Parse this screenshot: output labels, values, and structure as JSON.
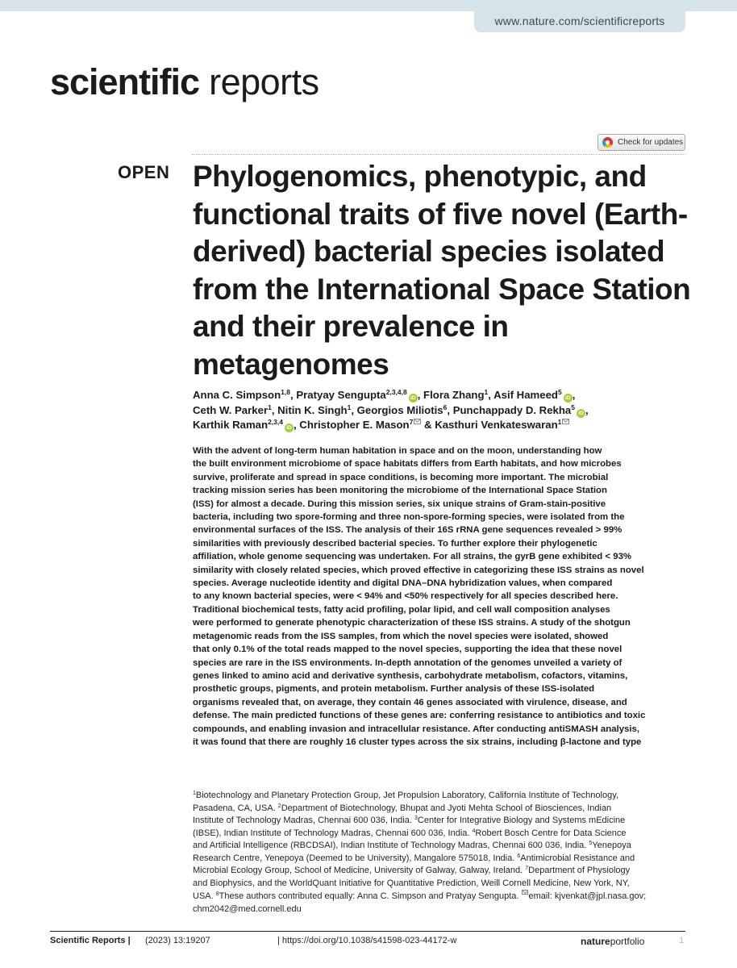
{
  "header": {
    "url": "www.nature.com/scientificreports",
    "brand_bold": "scientific",
    "brand_regular": " reports",
    "check_updates": "Check for updates"
  },
  "article": {
    "open_label": "OPEN",
    "title": "Phylogenomics, phenotypic, and functional traits of five novel (Earth-derived) bacterial species isolated from the International Space Station and their prevalence in metagenomes",
    "authors": [
      [
        "Anna C. Simpson",
        "1,8",
        "",
        ", Pratyay Sengupta",
        "2,3,4,8",
        "orcid",
        ", Flora Zhang",
        "1",
        "",
        ", Asif Hameed",
        "5",
        "orcid",
        ","
      ],
      [
        "Ceth W. Parker",
        "1",
        "",
        ", Nitin K. Singh",
        "1",
        "",
        ", Georgios Miliotis",
        "6",
        "",
        ", Punchappady D. Rekha",
        "5",
        "orcid",
        ","
      ],
      [
        "Karthik Raman",
        "2,3,4",
        "orcid",
        ", Christopher E. Mason",
        "7",
        "env",
        " & Kasthuri Venkateswaran",
        "1",
        "env",
        ""
      ]
    ],
    "abstract_lines": [
      "With the advent of long-term human habitation in space and on the moon, understanding how",
      "the built environment microbiome of space habitats differs from Earth habitats, and how microbes",
      "survive, proliferate and spread in space conditions, is becoming more important. The microbial",
      "tracking mission series has been monitoring the microbiome of the International Space Station",
      "(ISS) for almost a decade. During this mission series, six unique strains of Gram-stain-positive",
      "bacteria, including two spore-forming and three non-spore-forming species, were isolated from the",
      "environmental surfaces of the ISS. The analysis of their 16S rRNA gene sequences revealed > 99%",
      "similarities with previously described bacterial species. To further explore their phylogenetic",
      "affiliation, whole genome sequencing was undertaken. For all strains, the gyrB gene exhibited < 93%",
      "similarity with closely related species, which proved effective in categorizing these ISS strains as novel",
      "species. Average nucleotide identity and digital DNA–DNA hybridization values, when compared",
      "to any known bacterial species, were < 94% and <50% respectively for all species described here.",
      "Traditional biochemical tests, fatty acid profiling, polar lipid, and cell wall composition analyses",
      "were performed to generate phenotypic characterization of these ISS strains. A study of the shotgun",
      "metagenomic reads from the ISS samples, from which the novel species were isolated, showed",
      "that only 0.1% of the total reads mapped to the novel species, supporting the idea that these novel",
      "species are rare in the ISS environments. In-depth annotation of the genomes unveiled a variety of",
      "genes linked to amino acid and derivative synthesis, carbohydrate metabolism, cofactors, vitamins,",
      "prosthetic groups, pigments, and protein metabolism. Further analysis of these ISS-isolated",
      "organisms revealed that, on average, they contain 46 genes associated with virulence, disease, and",
      "defense. The main predicted functions of these genes are: conferring resistance to antibiotics and toxic",
      "compounds, and enabling invasion and intracellular resistance. After conducting antiSMASH analysis,",
      "it was found that there are roughly 16 cluster types across the six strains, including β-lactone and type"
    ],
    "affiliation_lines": [
      [
        [
          "1",
          "Biotechnology and Planetary Protection Group, Jet Propulsion Laboratory, California Institute of Technology,"
        ]
      ],
      [
        [
          "",
          "Pasadena, CA, USA. "
        ],
        [
          "2",
          "Department of Biotechnology, Bhupat and Jyoti Mehta School of Biosciences, Indian"
        ]
      ],
      [
        [
          "",
          "Institute of Technology Madras, Chennai 600 036, India. "
        ],
        [
          "3",
          "Center for Integrative Biology and Systems mEdicine"
        ]
      ],
      [
        [
          "",
          "(IBSE), Indian Institute of Technology Madras, Chennai 600 036, India. "
        ],
        [
          "4",
          "Robert Bosch Centre for Data Science"
        ]
      ],
      [
        [
          "",
          "and Artificial Intelligence (RBCDSAI), Indian Institute of Technology Madras, Chennai 600 036, India. "
        ],
        [
          "5",
          "Yenepoya"
        ]
      ],
      [
        [
          "",
          "Research Centre, Yenepoya (Deemed to be University), Mangalore 575018, India. "
        ],
        [
          "6",
          "Antimicrobial Resistance and"
        ]
      ],
      [
        [
          "",
          "Microbial Ecology Group, School of Medicine, University of Galway, Galway, Ireland. "
        ],
        [
          "7",
          "Department of Physiology"
        ]
      ],
      [
        [
          "",
          "and Biophysics, and the WorldQuant Initiative for Quantitative Prediction, Weill Cornell Medicine, New York, NY,"
        ]
      ],
      [
        [
          "",
          "USA. "
        ],
        [
          "8",
          "These authors contributed equally: Anna C. Simpson and Pratyay Sengupta. "
        ],
        [
          "env",
          "email: kjvenkat@jpl.nasa.gov;"
        ]
      ],
      [
        [
          "",
          "chm2042@med.cornell.edu"
        ]
      ]
    ]
  },
  "footer": {
    "journal": "Scientific Reports |",
    "year": "(2023) 13:19207",
    "doi": "| https://doi.org/10.1038/s41598-023-44172-w",
    "publisher_bold": "nature",
    "publisher_regular": "portfolio",
    "page": "1"
  },
  "colors": {
    "header_band": "#d6e3ea",
    "orcid": "#a6ce39",
    "text": "#1b1b1b"
  }
}
